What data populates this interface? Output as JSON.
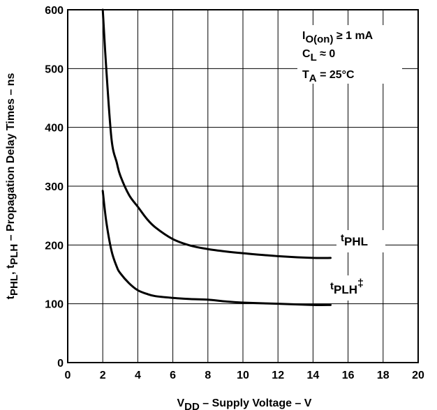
{
  "chart_data": {
    "type": "line",
    "xlim": [
      0,
      20
    ],
    "ylim": [
      0,
      600
    ],
    "x_ticks": [
      "0",
      "2",
      "4",
      "6",
      "8",
      "10",
      "12",
      "14",
      "16",
      "18",
      "20"
    ],
    "y_ticks": [
      "0",
      "100",
      "200",
      "300",
      "400",
      "500",
      "600"
    ],
    "grid": true,
    "xlabel": {
      "prefix": "V",
      "sub": "DD",
      "rest": " – Supply Voltage – V"
    },
    "ylabel": {
      "t1": "t",
      "s1": "PHL",
      "comma": ", ",
      "t2": "t",
      "s2": "PLH",
      "rest": "  – Propagation Delay Times – ns"
    },
    "conditions": {
      "line1": {
        "main": "I",
        "sub": "O(on)",
        "rest": " ≥ 1 mA"
      },
      "line2": {
        "main": "C",
        "sub": "L",
        "rest": " ≈ 0"
      },
      "line3": {
        "main": "T",
        "sub": "A",
        "rest": " = 25°C"
      }
    },
    "series": [
      {
        "label": {
          "main": "t",
          "sub": "PHL",
          "sup": ""
        },
        "x": [
          2.0,
          2.2,
          2.5,
          2.8,
          3.0,
          3.5,
          4.0,
          4.5,
          5.0,
          6.0,
          7.0,
          8.0,
          9.0,
          10.0,
          12.0,
          14.0,
          15.0
        ],
        "y": [
          600,
          500,
          380,
          340,
          318,
          285,
          265,
          245,
          230,
          210,
          199,
          193,
          189,
          186,
          181,
          178,
          178
        ]
      },
      {
        "label": {
          "main": "t",
          "sub": "PLH",
          "sup": "‡"
        },
        "x": [
          2.0,
          2.2,
          2.5,
          2.8,
          3.0,
          3.5,
          4.0,
          4.5,
          5.0,
          6.0,
          7.0,
          8.0,
          9.0,
          10.0,
          12.0,
          14.0,
          15.0
        ],
        "y": [
          292,
          240,
          190,
          163,
          152,
          135,
          123,
          117,
          113,
          110,
          108,
          107,
          104,
          102,
          100,
          98,
          98
        ]
      }
    ]
  }
}
